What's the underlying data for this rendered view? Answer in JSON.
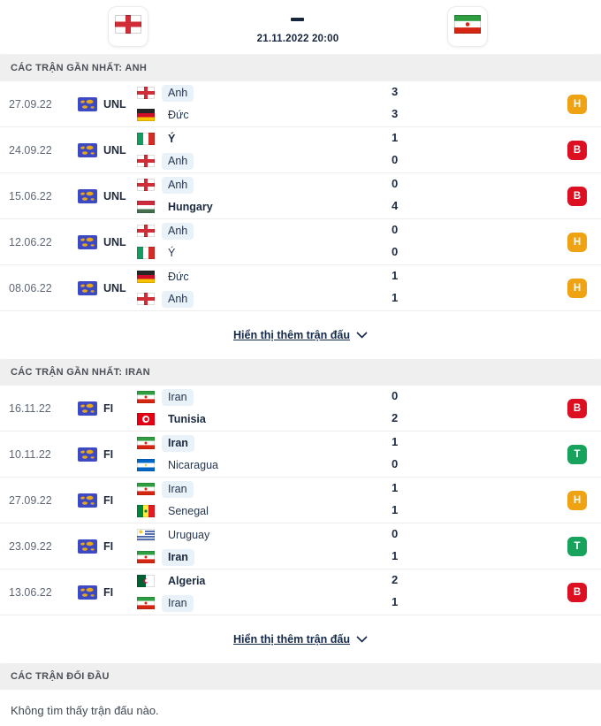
{
  "header": {
    "home_flag": "england",
    "away_flag": "iran",
    "separator": "-",
    "kickoff": "21.11.2022 20:00"
  },
  "result_colors": {
    "T": "#17a35c",
    "H": "#efa312",
    "B": "#dc1020"
  },
  "competition_icon_colors": {
    "bg": "#3d49c2",
    "map": "#e8a61c"
  },
  "highlight_color": "#e9f1f9",
  "sections": [
    {
      "title": "CÁC TRẬN GẦN NHẤT: ANH",
      "show_more_label": "Hiển thị thêm trận đấu",
      "matches": [
        {
          "date": "27.09.22",
          "competition": "UNL",
          "home": {
            "name": "Anh",
            "flag": "england",
            "score": "3",
            "highlight": true,
            "bold": false
          },
          "away": {
            "name": "Đức",
            "flag": "germany",
            "score": "3",
            "highlight": false,
            "bold": false
          },
          "result": "H"
        },
        {
          "date": "24.09.22",
          "competition": "UNL",
          "home": {
            "name": "Ý",
            "flag": "italy",
            "score": "1",
            "highlight": false,
            "bold": true
          },
          "away": {
            "name": "Anh",
            "flag": "england",
            "score": "0",
            "highlight": true,
            "bold": false
          },
          "result": "B"
        },
        {
          "date": "15.06.22",
          "competition": "UNL",
          "home": {
            "name": "Anh",
            "flag": "england",
            "score": "0",
            "highlight": true,
            "bold": false
          },
          "away": {
            "name": "Hungary",
            "flag": "hungary",
            "score": "4",
            "highlight": false,
            "bold": true
          },
          "result": "B"
        },
        {
          "date": "12.06.22",
          "competition": "UNL",
          "home": {
            "name": "Anh",
            "flag": "england",
            "score": "0",
            "highlight": true,
            "bold": false
          },
          "away": {
            "name": "Ý",
            "flag": "italy",
            "score": "0",
            "highlight": false,
            "bold": false
          },
          "result": "H"
        },
        {
          "date": "08.06.22",
          "competition": "UNL",
          "home": {
            "name": "Đức",
            "flag": "germany",
            "score": "1",
            "highlight": false,
            "bold": false
          },
          "away": {
            "name": "Anh",
            "flag": "england",
            "score": "1",
            "highlight": true,
            "bold": false
          },
          "result": "H"
        }
      ]
    },
    {
      "title": "CÁC TRẬN GẦN NHẤT: IRAN",
      "show_more_label": "Hiển thị thêm trận đấu",
      "matches": [
        {
          "date": "16.11.22",
          "competition": "FI",
          "home": {
            "name": "Iran",
            "flag": "iran",
            "score": "0",
            "highlight": true,
            "bold": false
          },
          "away": {
            "name": "Tunisia",
            "flag": "tunisia",
            "score": "2",
            "highlight": false,
            "bold": true
          },
          "result": "B"
        },
        {
          "date": "10.11.22",
          "competition": "FI",
          "home": {
            "name": "Iran",
            "flag": "iran",
            "score": "1",
            "highlight": true,
            "bold": true
          },
          "away": {
            "name": "Nicaragua",
            "flag": "nicaragua",
            "score": "0",
            "highlight": false,
            "bold": false
          },
          "result": "T"
        },
        {
          "date": "27.09.22",
          "competition": "FI",
          "home": {
            "name": "Iran",
            "flag": "iran",
            "score": "1",
            "highlight": true,
            "bold": false
          },
          "away": {
            "name": "Senegal",
            "flag": "senegal",
            "score": "1",
            "highlight": false,
            "bold": false
          },
          "result": "H"
        },
        {
          "date": "23.09.22",
          "competition": "FI",
          "home": {
            "name": "Uruguay",
            "flag": "uruguay",
            "score": "0",
            "highlight": false,
            "bold": false
          },
          "away": {
            "name": "Iran",
            "flag": "iran",
            "score": "1",
            "highlight": true,
            "bold": true
          },
          "result": "T"
        },
        {
          "date": "13.06.22",
          "competition": "FI",
          "home": {
            "name": "Algeria",
            "flag": "algeria",
            "score": "2",
            "highlight": false,
            "bold": true
          },
          "away": {
            "name": "Iran",
            "flag": "iran",
            "score": "1",
            "highlight": true,
            "bold": false
          },
          "result": "B"
        }
      ]
    }
  ],
  "h2h": {
    "title": "CÁC TRẬN ĐỐI ĐẦU",
    "empty_message": "Không tìm thấy trận đấu nào."
  }
}
